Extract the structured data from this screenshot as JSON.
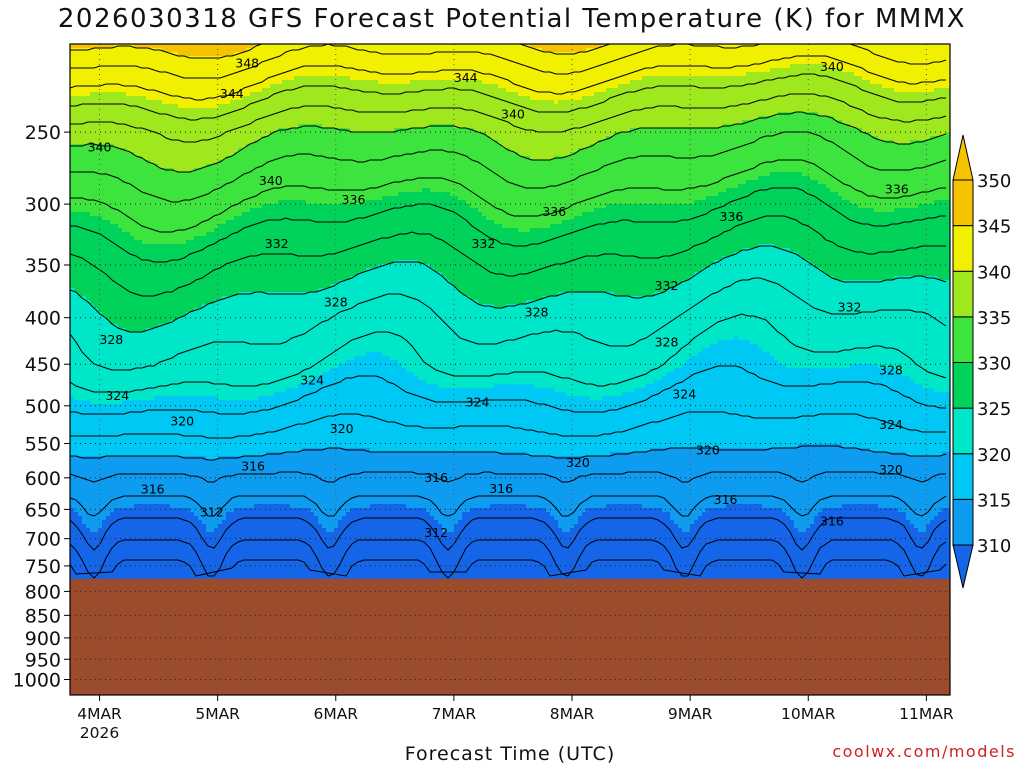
{
  "title": "2026030318 GFS Forecast Potential Temperature (K) for MMMX",
  "credit": "coolwx.com/models",
  "colors": {
    "ground": "#9a4c2c",
    "contour_line": "#000000",
    "bands": [
      "#1565e8",
      "#0d9cf0",
      "#00c8f5",
      "#00e6c8",
      "#00d25a",
      "#3ee43e",
      "#a0e81e",
      "#f0f000",
      "#f5c300"
    ]
  },
  "chart_data": {
    "type": "heatmap",
    "title": "2026030318 GFS Forecast Potential Temperature (K) for MMMX",
    "xlabel": "Forecast Time (UTC)",
    "ylabel": "",
    "x_ticks": [
      {
        "day": 0,
        "label": "4MAR",
        "sublabel": "2026"
      },
      {
        "day": 1,
        "label": "5MAR"
      },
      {
        "day": 2,
        "label": "6MAR"
      },
      {
        "day": 3,
        "label": "7MAR"
      },
      {
        "day": 4,
        "label": "8MAR"
      },
      {
        "day": 5,
        "label": "9MAR"
      },
      {
        "day": 6,
        "label": "10MAR"
      },
      {
        "day": 7,
        "label": "11MAR"
      }
    ],
    "xlim_days": [
      -0.25,
      7.2
    ],
    "y_axis": "pressure (hPa), log scale, inverted",
    "y_ticks": [
      "250",
      "300",
      "350",
      "400",
      "450",
      "500",
      "550",
      "600",
      "650",
      "700",
      "750",
      "800",
      "850",
      "900",
      "950",
      "1000"
    ],
    "ylim": [
      200,
      1040
    ],
    "surface_pressure": 775,
    "colorbar": {
      "levels": [
        "310",
        "315",
        "320",
        "325",
        "330",
        "335",
        "340",
        "345",
        "350"
      ],
      "extend": "both"
    },
    "grid": true,
    "contour_interval": 2,
    "profile": [
      [
        200,
        350
      ],
      [
        250,
        341
      ],
      [
        300,
        336
      ],
      [
        350,
        332
      ],
      [
        400,
        329
      ],
      [
        450,
        327
      ],
      [
        500,
        324
      ],
      [
        550,
        321
      ],
      [
        600,
        318
      ],
      [
        650,
        316
      ],
      [
        700,
        314
      ],
      [
        750,
        312
      ],
      [
        775,
        311
      ]
    ],
    "contour_labels": [
      {
        "text": "348",
        "day": 1.25,
        "p": 210
      },
      {
        "text": "344",
        "day": 1.12,
        "p": 227
      },
      {
        "text": "344",
        "day": 3.1,
        "p": 218
      },
      {
        "text": "340",
        "day": 6.2,
        "p": 212
      },
      {
        "text": "340",
        "day": 3.5,
        "p": 239
      },
      {
        "text": "340",
        "day": 0.0,
        "p": 260
      },
      {
        "text": "340",
        "day": 1.45,
        "p": 283
      },
      {
        "text": "336",
        "day": 2.15,
        "p": 297
      },
      {
        "text": "336",
        "day": 3.85,
        "p": 306
      },
      {
        "text": "336",
        "day": 5.35,
        "p": 310
      },
      {
        "text": "336",
        "day": 6.75,
        "p": 289
      },
      {
        "text": "332",
        "day": 1.5,
        "p": 332
      },
      {
        "text": "332",
        "day": 3.25,
        "p": 332
      },
      {
        "text": "332",
        "day": 4.8,
        "p": 369
      },
      {
        "text": "332",
        "day": 6.35,
        "p": 390
      },
      {
        "text": "328",
        "day": 2.0,
        "p": 385
      },
      {
        "text": "328",
        "day": 3.7,
        "p": 395
      },
      {
        "text": "328",
        "day": 0.1,
        "p": 423
      },
      {
        "text": "328",
        "day": 4.8,
        "p": 426
      },
      {
        "text": "328",
        "day": 6.7,
        "p": 457
      },
      {
        "text": "324",
        "day": 1.8,
        "p": 469
      },
      {
        "text": "324",
        "day": 0.15,
        "p": 488
      },
      {
        "text": "324",
        "day": 3.2,
        "p": 496
      },
      {
        "text": "324",
        "day": 4.95,
        "p": 486
      },
      {
        "text": "324",
        "day": 6.7,
        "p": 525
      },
      {
        "text": "320",
        "day": 0.7,
        "p": 520
      },
      {
        "text": "320",
        "day": 2.05,
        "p": 530
      },
      {
        "text": "320",
        "day": 4.05,
        "p": 578
      },
      {
        "text": "320",
        "day": 5.15,
        "p": 560
      },
      {
        "text": "320",
        "day": 6.7,
        "p": 588
      },
      {
        "text": "316",
        "day": 1.3,
        "p": 583
      },
      {
        "text": "316",
        "day": 0.45,
        "p": 618
      },
      {
        "text": "316",
        "day": 2.85,
        "p": 600
      },
      {
        "text": "316",
        "day": 3.4,
        "p": 617
      },
      {
        "text": "316",
        "day": 5.3,
        "p": 635
      },
      {
        "text": "316",
        "day": 6.2,
        "p": 670
      },
      {
        "text": "312",
        "day": 0.95,
        "p": 655
      },
      {
        "text": "312",
        "day": 2.85,
        "p": 690
      }
    ]
  }
}
